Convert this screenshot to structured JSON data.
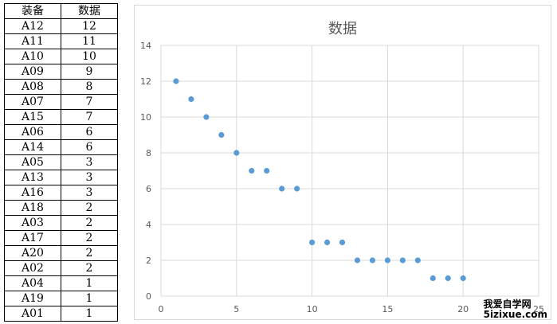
{
  "table": {
    "headers": [
      "装备",
      "数据"
    ],
    "rows": [
      [
        "A12",
        "12"
      ],
      [
        "A11",
        "11"
      ],
      [
        "A10",
        "10"
      ],
      [
        "A09",
        "9"
      ],
      [
        "A08",
        "8"
      ],
      [
        "A07",
        "7"
      ],
      [
        "A15",
        "7"
      ],
      [
        "A06",
        "6"
      ],
      [
        "A14",
        "6"
      ],
      [
        "A05",
        "3"
      ],
      [
        "A13",
        "3"
      ],
      [
        "A16",
        "3"
      ],
      [
        "A18",
        "2"
      ],
      [
        "A03",
        "2"
      ],
      [
        "A17",
        "2"
      ],
      [
        "A20",
        "2"
      ],
      [
        "A02",
        "2"
      ],
      [
        "A04",
        "1"
      ],
      [
        "A19",
        "1"
      ],
      [
        "A01",
        "1"
      ]
    ]
  },
  "chart_data": {
    "type": "scatter",
    "title": "数据",
    "x": [
      1,
      2,
      3,
      4,
      5,
      6,
      7,
      8,
      9,
      10,
      11,
      12,
      13,
      14,
      15,
      16,
      17,
      18,
      19,
      20
    ],
    "y": [
      12,
      11,
      10,
      9,
      8,
      7,
      7,
      6,
      6,
      3,
      3,
      3,
      2,
      2,
      2,
      2,
      2,
      1,
      1,
      1
    ],
    "xlim": [
      0,
      25
    ],
    "ylim": [
      0,
      14
    ],
    "xticks": [
      0,
      5,
      10,
      15,
      20,
      25
    ],
    "yticks": [
      0,
      2,
      4,
      6,
      8,
      10,
      12,
      14
    ],
    "grid": true,
    "marker_color": "#5b9bd5",
    "grid_color": "#d9d9d9"
  },
  "watermark": {
    "line1": "我爱自学网",
    "line2": "5izixue.com"
  }
}
